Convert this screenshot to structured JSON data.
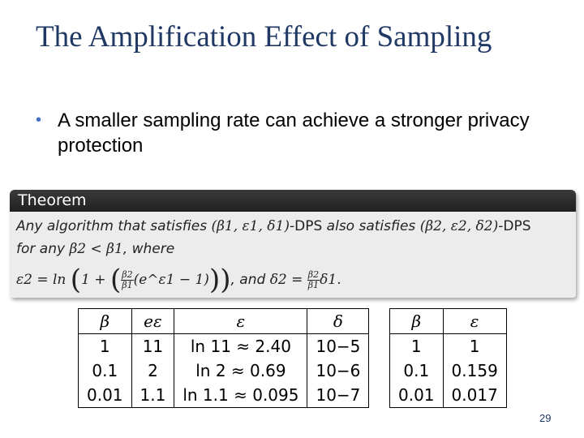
{
  "slide": {
    "title": "The Amplification Effect of Sampling",
    "bullet": "A smaller sampling rate can achieve a stronger privacy protection",
    "page_number": "29"
  },
  "theorem": {
    "header": "Theorem",
    "line1_prefix": "Any algorithm that satisfies",
    "tuple1": "(β1, ε1, δ1)",
    "dps1": "-DPS",
    "also": "also satisfies",
    "tuple2": "(β2, ε2, δ2)",
    "dps2": "-DPS",
    "for_any": "for any",
    "condition": "β2 < β1",
    "where": ", where",
    "eps_lhs": "ε2 = ln",
    "frac_num": "β2",
    "frac_den": "β1",
    "exp_term": "(e^ε1 − 1)",
    "and": ", and",
    "delta_lhs": "δ2 =",
    "delta_rhs": "δ1."
  },
  "table1": {
    "headers": [
      "β",
      "eε",
      "ε",
      "δ"
    ],
    "rows": [
      [
        "1",
        "11",
        "ln 11 ≈ 2.40",
        "10−5"
      ],
      [
        "0.1",
        "2",
        "ln 2 ≈ 0.69",
        "10−6"
      ],
      [
        "0.01",
        "1.1",
        "ln 1.1 ≈ 0.095",
        "10−7"
      ]
    ]
  },
  "table2": {
    "headers": [
      "β",
      "ε"
    ],
    "rows": [
      [
        "1",
        "1"
      ],
      [
        "0.1",
        "0.159"
      ],
      [
        "0.01",
        "0.017"
      ]
    ]
  }
}
